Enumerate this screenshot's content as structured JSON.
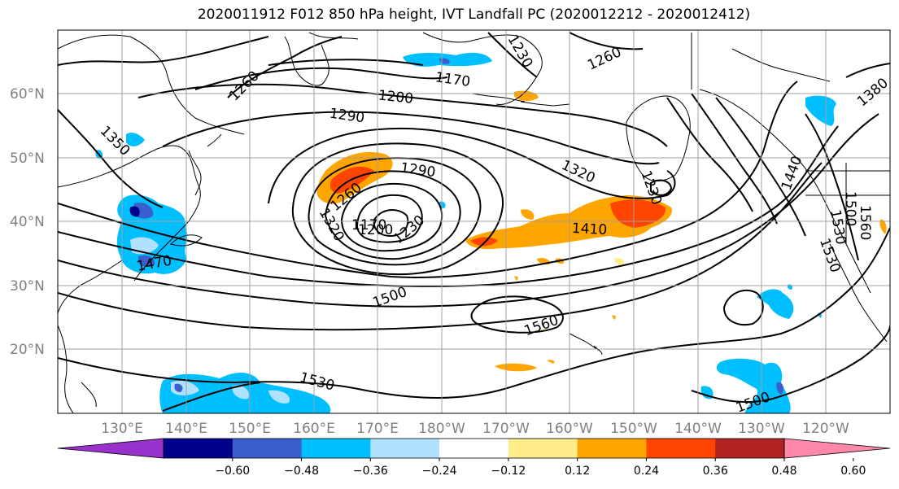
{
  "title": "2020011912 F012 850 hPa height, IVT Landfall PC (2020012212 - 2020012412)",
  "map": {
    "projection": "equirectangular",
    "lon_range": [
      "120°E",
      "250°E (110°W)"
    ],
    "lat_range": [
      "10°N",
      "70°N"
    ],
    "grid": true,
    "lat_labels": [
      "20°N",
      "30°N",
      "40°N",
      "50°N",
      "60°N"
    ],
    "lon_labels": [
      "130°E",
      "140°E",
      "150°E",
      "160°E",
      "170°E",
      "180°W",
      "170°W",
      "160°W",
      "150°W",
      "140°W",
      "130°W",
      "120°W"
    ],
    "contour_labels": [
      "1260",
      "1200",
      "1290",
      "1170",
      "1230",
      "1260",
      "1380",
      "1350",
      "1260",
      "1290",
      "1320",
      "1170",
      "1200",
      "1230",
      "1320",
      "1230",
      "1410",
      "1440",
      "1500",
      "1530",
      "1500",
      "1560",
      "1530",
      "1500",
      "1470",
      "1530",
      "1560"
    ]
  },
  "colorbar": {
    "ticks": [
      "−0.60",
      "−0.48",
      "−0.36",
      "−0.24",
      "−0.12",
      "0.12",
      "0.24",
      "0.36",
      "0.48",
      "0.60"
    ],
    "colors": [
      "#9932cc",
      "#00008b",
      "#3a5fcd",
      "#00bfff",
      "#b0e2ff",
      "#ffffff",
      "#ffec8b",
      "#ffa500",
      "#ff4500",
      "#b22222",
      "#ff88aa"
    ]
  }
}
